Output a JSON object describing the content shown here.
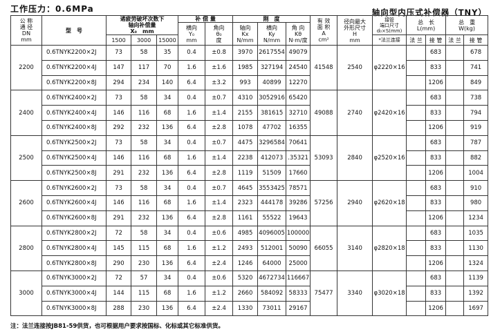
{
  "pressure_title": "工作压力：0.6MPa",
  "product_title": "轴向型内压式补偿器（TNY）",
  "headers": {
    "dn": "公 称\n通 径\nDN\nmm",
    "model": "型　号",
    "x_group": "诸疲劳破坏次数下\n轴向补偿量\nX₀　mm",
    "x_cols": [
      "1500",
      "3000",
      "15000"
    ],
    "comp_group": "补 偿 量",
    "y": "横向\nY₀\nmm",
    "theta": "角向\nθ₀\n度",
    "stiff_group": "刚　度",
    "kx": "轴向\nKx\nN/mm",
    "ky": "横向\nKy\nN/mm",
    "kt": "角 向\nKθ\nN·m/度",
    "area": "有 效\n面 积\nA\ncm²",
    "h": "径向最大\n外形尺寸\nH\nmm",
    "pipe": "接管\n端口尺寸\nd₀×S(mm)",
    "pipe_sub": "*法兰连接",
    "length": "总　长\nL(mm)",
    "weight": "总　重\nW(kg)",
    "flange": "法 兰",
    "tube": "接 管"
  },
  "groups": [
    {
      "dn": "2200",
      "area": "41548",
      "h": "2540",
      "pipe": "φ2220×16",
      "rows": [
        {
          "model": "0.6TNYK2200×2J",
          "x1": "73",
          "x2": "58",
          "x3": "35",
          "y": "0.4",
          "t": "±0.8",
          "kx": "3970",
          "ky": "2617554",
          "kt": "49079",
          "l": "683",
          "w": "678"
        },
        {
          "model": "0.6TNYK2200×4J",
          "x1": "147",
          "x2": "117",
          "x3": "70",
          "y": "1.6",
          "t": "±1.6",
          "kx": "1985",
          "ky": "327194",
          "kt": "24540",
          "l": "833",
          "w": "741"
        },
        {
          "model": "0.6TNYK2200×8J",
          "x1": "294",
          "x2": "234",
          "x3": "140",
          "y": "6.4",
          "t": "±3.2",
          "kx": "993",
          "ky": "40899",
          "kt": "12270",
          "l": "1206",
          "w": "849"
        }
      ]
    },
    {
      "dn": "2400",
      "area": "49088",
      "h": "2740",
      "pipe": "φ2420×16",
      "rows": [
        {
          "model": "0.6TNYK2400×2J",
          "x1": "73",
          "x2": "58",
          "x3": "34",
          "y": "0.4",
          "t": "±0.7",
          "kx": "4310",
          "ky": "3052916",
          "kt": "65420",
          "l": "683",
          "w": "738"
        },
        {
          "model": "0.6TNYK2400×4J",
          "x1": "146",
          "x2": "116",
          "x3": "68",
          "y": "1.6",
          "t": "±1.4",
          "kx": "2155",
          "ky": "381615",
          "kt": "32710",
          "l": "833",
          "w": "794"
        },
        {
          "model": "0.6TNYK2400×8J",
          "x1": "292",
          "x2": "232",
          "x3": "136",
          "y": "6.4",
          "t": "±2.8",
          "kx": "1078",
          "ky": "47702",
          "kt": "16355",
          "l": "1206",
          "w": "919"
        }
      ]
    },
    {
      "dn": "2500",
      "area": "53093",
      "h": "2840",
      "pipe": "φ2520×16",
      "rows": [
        {
          "model": "0.6TNYK2500×2J",
          "x1": "73",
          "x2": "58",
          "x3": "34",
          "y": "0.4",
          "t": "±0.7",
          "kx": "4475",
          "ky": "3296584",
          "kt": "70641",
          "l": "683",
          "w": "787"
        },
        {
          "model": "0.6TNYK2500×4J",
          "x1": "146",
          "x2": "116",
          "x3": "68",
          "y": "1.6",
          "t": "±1.4",
          "kx": "2238",
          "ky": "412073",
          "kt": ".35321",
          "l": "833",
          "w": "882"
        },
        {
          "model": "0.6TNYK2500×8J",
          "x1": "291",
          "x2": "232",
          "x3": "136",
          "y": "6.4",
          "t": "±2.8",
          "kx": "1119",
          "ky": "51509",
          "kt": "17660",
          "l": "1206",
          "w": "1004"
        }
      ]
    },
    {
      "dn": "2600",
      "area": "57256",
      "h": "2940",
      "pipe": "φ2620×18",
      "rows": [
        {
          "model": "0.6TNYK2600×2J",
          "x1": "73",
          "x2": "58",
          "x3": "34",
          "y": "0.4",
          "t": "±0.7",
          "kx": "4645",
          "ky": "3553425",
          "kt": "78571",
          "l": "683",
          "w": "910"
        },
        {
          "model": "0.6TNYK2600×4J",
          "x1": "146",
          "x2": "116",
          "x3": "68",
          "y": "1.6",
          "t": "±1.4",
          "kx": "2323",
          "ky": "444178",
          "kt": "39286",
          "l": "833",
          "w": "980"
        },
        {
          "model": "0.6TNYK2600×8J",
          "x1": "291",
          "x2": "232",
          "x3": "136",
          "y": "6.4",
          "t": "±2.8",
          "kx": "1161",
          "ky": "55522",
          "kt": "19643",
          "l": "1206",
          "w": "1234"
        }
      ]
    },
    {
      "dn": "2800",
      "area": "66055",
      "h": "3140",
      "pipe": "φ2820×18",
      "rows": [
        {
          "model": "0.6TNYK2800×2J",
          "x1": "72",
          "x2": "58",
          "x3": "34",
          "y": "0.4",
          "t": "±0.6",
          "kx": "4985",
          "ky": "4096005",
          "kt": "100000",
          "l": "683",
          "w": "1035"
        },
        {
          "model": "0.6TNYK2800×4J",
          "x1": "145",
          "x2": "115",
          "x3": "68",
          "y": "1.6",
          "t": "±1.2",
          "kx": "2493",
          "ky": "512001",
          "kt": "50090",
          "l": "833",
          "w": "1130"
        },
        {
          "model": "0.6TNYK2800×8J",
          "x1": "290",
          "x2": "230",
          "x3": "136",
          "y": "6.4",
          "t": "±2.4",
          "kx": "1246",
          "ky": "64000",
          "kt": "25000",
          "l": "1206",
          "w": "1324"
        }
      ]
    },
    {
      "dn": "3000",
      "area": "75477",
      "h": "3340",
      "pipe": "φ3020×18",
      "rows": [
        {
          "model": "0.6TNYK3000×2J",
          "x1": "72",
          "x2": "57",
          "x3": "34",
          "y": "0.4",
          "t": "±0.6",
          "kx": "5320",
          "ky": "4672734",
          "kt": "116667",
          "l": "683",
          "w": "1139"
        },
        {
          "model": "0.6TNYK3000×4J",
          "x1": "144",
          "x2": "115",
          "x3": "68",
          "y": "1.6",
          "t": "±1.2",
          "kx": "2660",
          "ky": "584092",
          "kt": "58333",
          "l": "833",
          "w": "1392"
        },
        {
          "model": "0.6TNYK3000×8J",
          "x1": "288",
          "x2": "230",
          "x3": "136",
          "y": "6.4",
          "t": "±2.4",
          "kx": "1330",
          "ky": "73011",
          "kt": "29167",
          "l": "1206",
          "w": "1697"
        }
      ]
    }
  ],
  "footnote": "注：法兰连接按JB81-59供货，也可根据用户要求按国标、化标或其它标准供货。"
}
